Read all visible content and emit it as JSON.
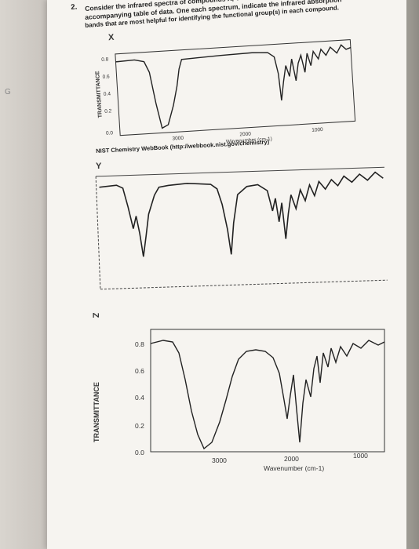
{
  "page": {
    "left_margin_mark": "G",
    "question_number": "2.",
    "question_lines": [
      "Consider the infrared spectra of compounds X, Y and Z shown below, and the",
      "accompanying table of data. One each spectrum, indicate the infrared absorption",
      "bands that are most helpful for identifying the functional group(s) in each compound."
    ]
  },
  "spectra": [
    {
      "label": "X",
      "ylabel": "TRANSMITTANCE",
      "yticks": [
        "0.8",
        "0.6",
        "0.4",
        "0.2",
        "0.0"
      ],
      "xticks": [
        "3000",
        "2000",
        "1000"
      ],
      "xlabel": "Wavenumber (cm-1)",
      "credit": "NIST Chemistry WebBook (http://webbook.nist.gov/chemistry)"
    },
    {
      "label": "Y",
      "ylabel": "",
      "yticks": [],
      "xticks": [],
      "xlabel": "",
      "credit": ""
    },
    {
      "label": "Z",
      "ylabel": "TRANSMITTANCE",
      "yticks": [
        "0.8",
        "0.6",
        "0.4",
        "0.2",
        "0.0"
      ],
      "xticks": [
        "3000",
        "2000",
        "1000"
      ],
      "xlabel": "Wavenumber (cm-1)",
      "credit": ""
    }
  ],
  "colors": {
    "paper": "#f6f4f0",
    "ink": "#222222",
    "desk": "#cfcac4"
  }
}
